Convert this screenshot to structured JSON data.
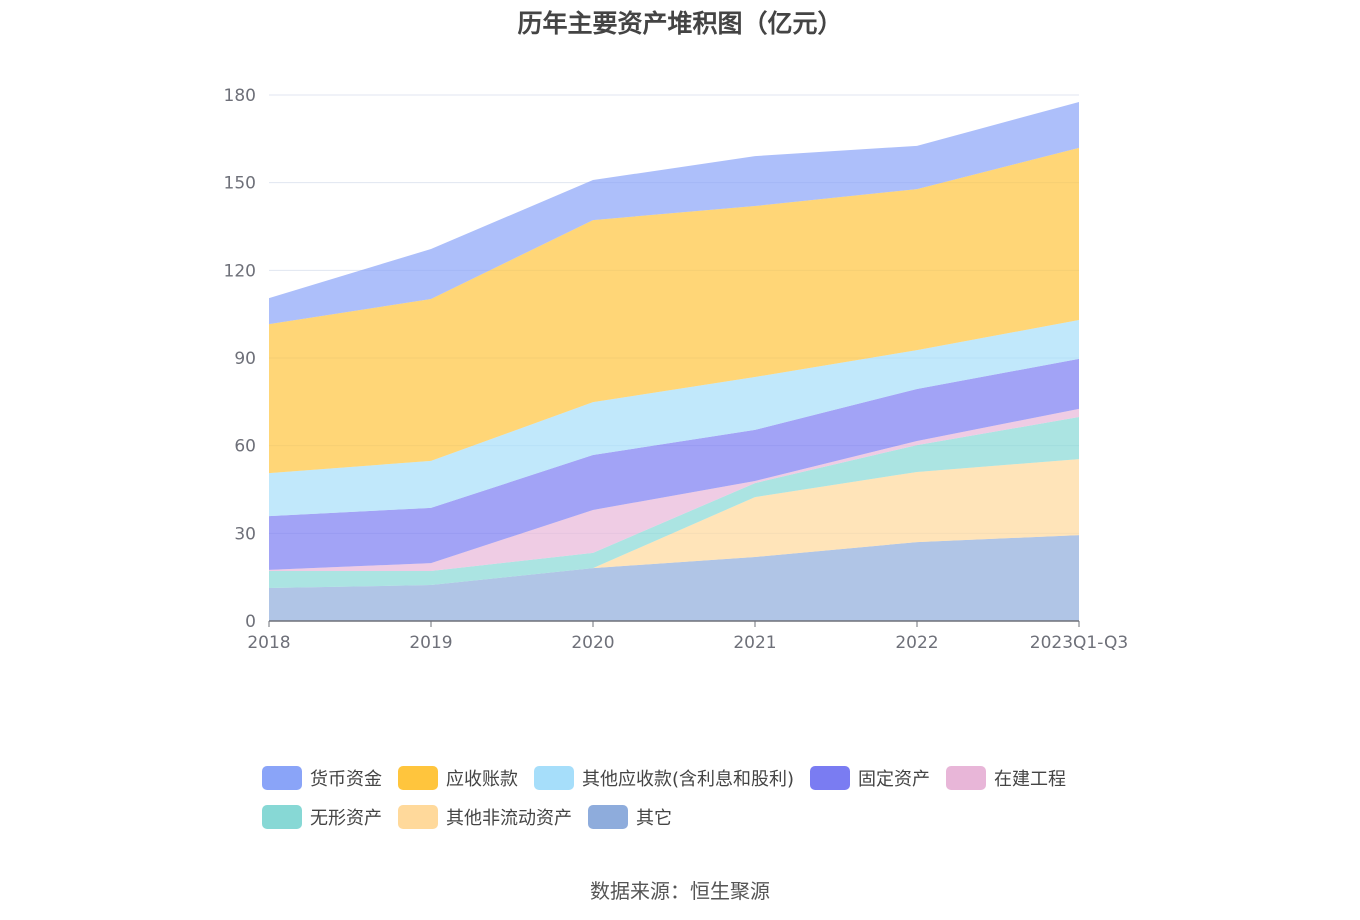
{
  "chart_data": {
    "type": "area",
    "stacked": true,
    "title": "历年主要资产堆积图（亿元）",
    "xlabel": "",
    "ylabel": "",
    "ylim": [
      0,
      180
    ],
    "yticks": [
      0,
      30,
      60,
      90,
      120,
      150,
      180
    ],
    "categories": [
      "2018",
      "2019",
      "2020",
      "2021",
      "2022",
      "2023Q1-Q3"
    ],
    "grid": true,
    "legend_position": "bottom",
    "series": [
      {
        "name": "其它",
        "color": "#8eacdc",
        "values": [
          11.3,
          12.3,
          18.1,
          21.9,
          27.0,
          29.4
        ]
      },
      {
        "name": "其他非流动资产",
        "color": "#ffd99b",
        "values": [
          0,
          0,
          0,
          20.5,
          24.0,
          26.0
        ]
      },
      {
        "name": "无形资产",
        "color": "#87d8d5",
        "values": [
          5.8,
          4.8,
          5.2,
          4.8,
          9.2,
          14.4
        ]
      },
      {
        "name": "在建工程",
        "color": "#e8b6d8",
        "values": [
          0.4,
          2.7,
          14.7,
          0.7,
          1.4,
          2.8
        ]
      },
      {
        "name": "固定资产",
        "color": "#7a7cf2",
        "values": [
          18.4,
          18.9,
          18.8,
          17.5,
          17.8,
          17.1
        ]
      },
      {
        "name": "其他应收款(含利息和股利)",
        "color": "#a6defa",
        "values": [
          14.7,
          16.1,
          18.1,
          18.1,
          13.3,
          13.3
        ]
      },
      {
        "name": "应收账款",
        "color": "#ffc53d",
        "values": [
          51.0,
          55.4,
          62.3,
          58.5,
          55.1,
          58.9
        ]
      },
      {
        "name": "货币资金",
        "color": "#8aa4f8",
        "values": [
          8.9,
          17.1,
          13.7,
          17.1,
          14.8,
          15.7
        ]
      }
    ],
    "legend_order": [
      "货币资金",
      "应收账款",
      "其他应收款(含利息和股利)",
      "固定资产",
      "在建工程",
      "无形资产",
      "其他非流动资产",
      "其它"
    ]
  },
  "source": "数据来源：恒生聚源"
}
